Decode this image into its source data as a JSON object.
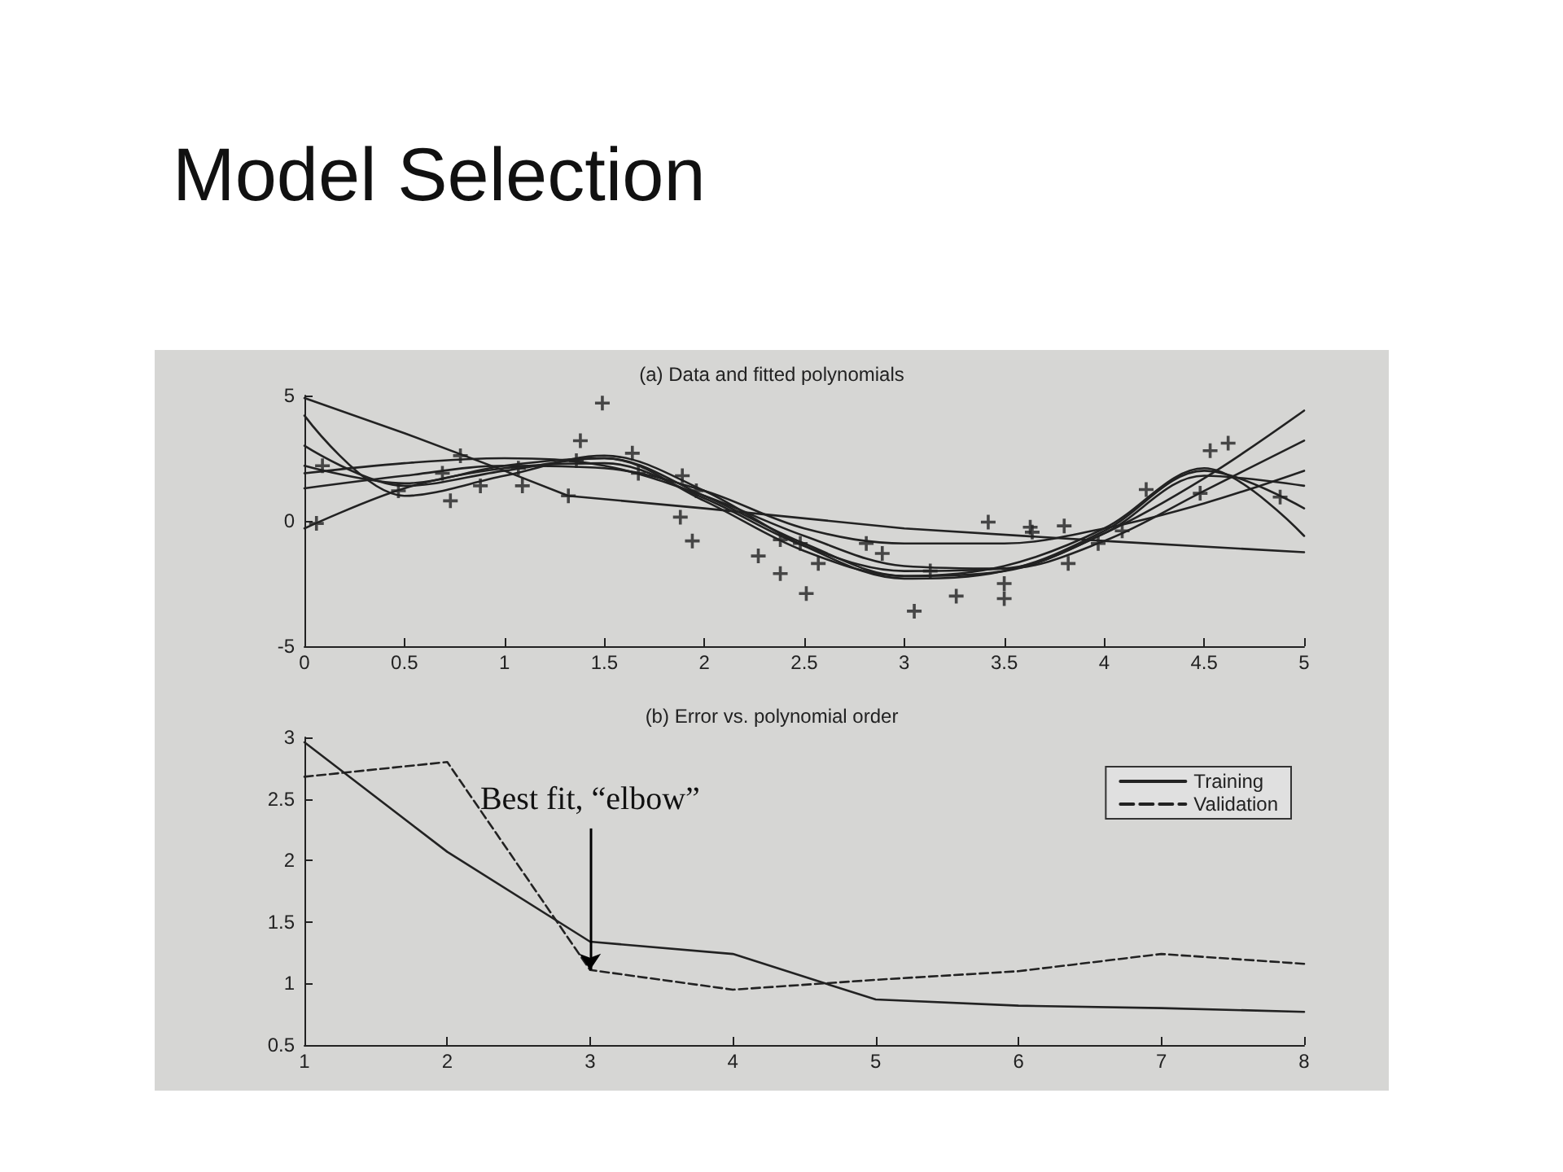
{
  "chart_data": [
    {
      "type": "line",
      "title": "(a) Data and fitted polynomials",
      "annotations": [
        "Model Selection"
      ],
      "xlim": [
        0,
        5
      ],
      "ylim": [
        -5,
        5
      ],
      "xticks": [
        0,
        0.5,
        1,
        1.5,
        2,
        2.5,
        3,
        3.5,
        4,
        4.5,
        5
      ],
      "yticks": [
        -5,
        0,
        5
      ],
      "grid": false,
      "legend": false,
      "marker": "none",
      "line_style": "solid",
      "series": [
        {
          "type": "scatter",
          "marker": "cross",
          "color": "#222222",
          "x": [
            0.06,
            0.09,
            0.47,
            0.69,
            0.73,
            0.78,
            0.88,
            1.07,
            1.09,
            1.32,
            1.38,
            1.36,
            1.49,
            1.64,
            1.67,
            1.89,
            1.88,
            1.96,
            1.94,
            2.27,
            2.38,
            2.51,
            2.38,
            2.48,
            2.57,
            2.81,
            2.89,
            3.05,
            3.13,
            3.26,
            3.42,
            3.5,
            3.5,
            3.63,
            3.64,
            3.8,
            3.82,
            3.97,
            4.09,
            4.21,
            4.48,
            4.53,
            4.62,
            4.88
          ],
          "values": [
            -0.1,
            2.2,
            1.2,
            1.9,
            0.8,
            2.6,
            1.4,
            2.1,
            1.4,
            1.0,
            3.2,
            2.4,
            4.7,
            2.7,
            1.9,
            1.8,
            0.15,
            1.2,
            -0.8,
            -1.4,
            -2.1,
            -2.9,
            -0.75,
            -0.9,
            -1.7,
            -0.9,
            -1.3,
            -3.6,
            -2.0,
            -3.0,
            -0.05,
            -2.5,
            -3.1,
            -0.25,
            -0.45,
            -0.2,
            -1.7,
            -0.9,
            -0.4,
            1.25,
            1.1,
            2.8,
            3.1,
            0.95
          ]
        },
        {
          "color": "#222222",
          "x": [
            0,
            0.5,
            1,
            1.32,
            2,
            3,
            4,
            5
          ],
          "values": [
            4.9,
            3.5,
            2.0,
            1.0,
            0.5,
            -0.3,
            -0.8,
            -1.25
          ]
        },
        {
          "color": "#222222",
          "x": [
            0,
            0.5,
            1,
            1.5,
            2,
            2.5,
            3,
            3.5,
            4,
            4.5,
            5
          ],
          "values": [
            1.3,
            1.8,
            2.2,
            2.1,
            1.2,
            -0.3,
            -0.9,
            -0.9,
            -0.3,
            0.7,
            2.0
          ]
        },
        {
          "color": "#222222",
          "x": [
            0,
            0.5,
            1,
            1.5,
            2,
            2.5,
            3,
            3.5,
            4,
            4.5,
            5
          ],
          "values": [
            1.9,
            2.3,
            2.5,
            2.2,
            1.0,
            -0.6,
            -1.8,
            -1.9,
            -0.8,
            1.2,
            3.2
          ]
        },
        {
          "color": "#222222",
          "x": [
            0,
            0.5,
            1,
            1.5,
            2,
            2.5,
            3,
            3.5,
            4,
            4.5,
            5
          ],
          "values": [
            2.2,
            1.5,
            2.2,
            2.5,
            1.0,
            -0.9,
            -2.2,
            -2.0,
            -0.5,
            1.7,
            4.4
          ]
        },
        {
          "color": "#222222",
          "x": [
            0,
            0.5,
            1,
            1.5,
            2,
            2.5,
            3,
            3.5,
            4,
            4.5,
            5
          ],
          "values": [
            4.2,
            1.0,
            1.8,
            2.6,
            1.2,
            -1.0,
            -2.3,
            -2.0,
            -0.4,
            2.0,
            0.5
          ]
        },
        {
          "color": "#222222",
          "x": [
            0,
            0.5,
            1,
            1.5,
            2,
            2.5,
            3,
            3.5,
            4,
            4.5,
            5
          ],
          "values": [
            -0.3,
            1.3,
            2.1,
            2.3,
            0.9,
            -1.0,
            -2.0,
            -1.9,
            -0.5,
            1.8,
            1.4
          ]
        },
        {
          "color": "#222222",
          "x": [
            0,
            0.5,
            1,
            1.5,
            2,
            2.5,
            3,
            3.5,
            4,
            4.5,
            5
          ],
          "values": [
            3.0,
            1.4,
            2.0,
            2.5,
            0.8,
            -1.2,
            -2.2,
            -1.8,
            -0.3,
            2.1,
            -0.6
          ]
        }
      ]
    },
    {
      "type": "line",
      "title": "(b) Error vs. polynomial order",
      "annotations": [
        {
          "text": "Best fit, “elbow”",
          "x": 3,
          "y": 1.11
        }
      ],
      "xlim": [
        1,
        8
      ],
      "ylim": [
        0.5,
        3
      ],
      "xticks": [
        1,
        2,
        3,
        4,
        5,
        6,
        7,
        8
      ],
      "yticks": [
        0.5,
        1,
        1.5,
        2,
        2.5,
        3
      ],
      "grid": false,
      "legend": "top right",
      "marker": "none",
      "x": [
        1,
        2,
        3,
        4,
        5,
        6,
        7,
        8
      ],
      "series": [
        {
          "name": "Training",
          "color": "#222222",
          "line_style": "solid",
          "values": [
            2.96,
            2.07,
            1.34,
            1.24,
            0.87,
            0.82,
            0.8,
            0.77
          ]
        },
        {
          "name": "Validation",
          "color": "#222222",
          "line_style": "dashed",
          "values": [
            2.68,
            2.8,
            1.11,
            0.95,
            1.03,
            1.1,
            1.24,
            1.16
          ]
        }
      ]
    }
  ]
}
